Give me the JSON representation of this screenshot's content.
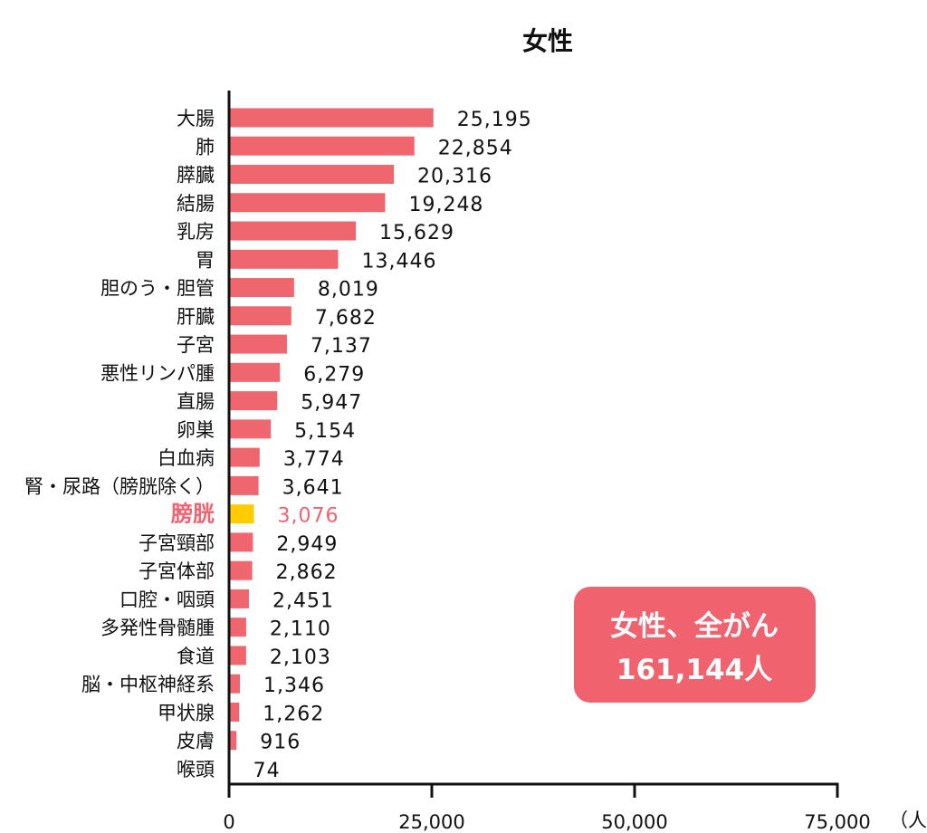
{
  "chart_data": {
    "type": "bar",
    "orientation": "horizontal",
    "title": "女性",
    "xlabel": "",
    "unit_label": "（人）",
    "xlim": [
      0,
      75000
    ],
    "xticks": [
      0,
      25000,
      50000,
      75000
    ],
    "xtick_labels": [
      "0",
      "25,000",
      "50,000",
      "75,000"
    ],
    "categories": [
      "大腸",
      "肺",
      "膵臓",
      "結腸",
      "乳房",
      "胃",
      "胆のう・胆管",
      "肝臓",
      "子宮",
      "悪性リンパ腫",
      "直腸",
      "卵巣",
      "白血病",
      "腎・尿路（膀胱除く）",
      "膀胱",
      "子宮頸部",
      "子宮体部",
      "口腔・咽頭",
      "多発性骨髄腫",
      "食道",
      "脳・中枢神経系",
      "甲状腺",
      "皮膚",
      "喉頭"
    ],
    "values": [
      25195,
      22854,
      20316,
      19248,
      15629,
      13446,
      8019,
      7682,
      7137,
      6279,
      5947,
      5154,
      3774,
      3641,
      3076,
      2949,
      2862,
      2451,
      2110,
      2103,
      1346,
      1262,
      916,
      74
    ],
    "value_labels": [
      "25,195",
      "22,854",
      "20,316",
      "19,248",
      "15,629",
      "13,446",
      "8,019",
      "7,682",
      "7,137",
      "6,279",
      "5,947",
      "5,154",
      "3,774",
      "3,641",
      "3,076",
      "2,949",
      "2,862",
      "2,451",
      "2,110",
      "2,103",
      "1,346",
      "1,262",
      "916",
      "74"
    ],
    "highlight_category": "膀胱",
    "grid": false,
    "colors": {
      "bar": "#f0666f",
      "highlight_bar": "#ffcc00",
      "highlight_text": "#f0636e",
      "badge": "#f0636e"
    }
  },
  "badge": {
    "line1": "女性、全がん",
    "line2": "161,144人"
  }
}
